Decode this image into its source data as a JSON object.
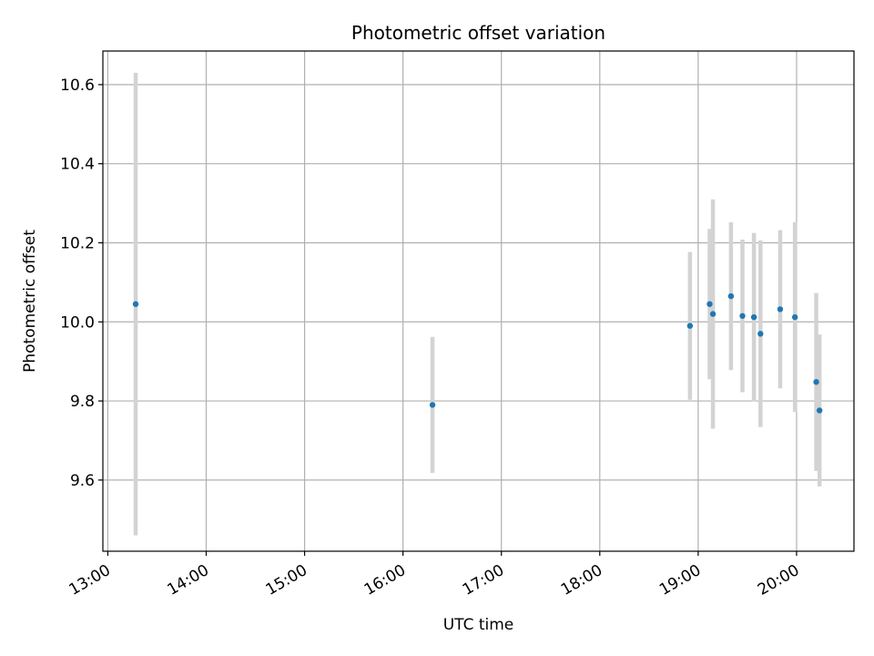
{
  "chart_data": {
    "type": "scatter",
    "title": "Photometric offset variation",
    "xlabel": "UTC time",
    "ylabel": "Photometric offset",
    "x_ticks": [
      "13:00",
      "14:00",
      "15:00",
      "16:00",
      "17:00",
      "18:00",
      "19:00",
      "20:00"
    ],
    "y_ticks": [
      "9.6",
      "9.8",
      "10.0",
      "10.2",
      "10.4",
      "10.6"
    ],
    "xlim": [
      "12:57",
      "20:35"
    ],
    "ylim": [
      9.42,
      10.685
    ],
    "grid": true,
    "point_color": "#1f77b4",
    "errorbar_color": "#d3d3d3",
    "points": [
      {
        "x": "13:17",
        "y": 10.045,
        "yerr": 0.585
      },
      {
        "x": "16:18",
        "y": 9.79,
        "yerr": 0.172
      },
      {
        "x": "18:55",
        "y": 9.99,
        "yerr": 0.187
      },
      {
        "x": "19:07",
        "y": 10.045,
        "yerr": 0.19
      },
      {
        "x": "19:09",
        "y": 10.02,
        "yerr": 0.29
      },
      {
        "x": "19:20",
        "y": 10.065,
        "yerr": 0.187
      },
      {
        "x": "19:27",
        "y": 10.015,
        "yerr": 0.193
      },
      {
        "x": "19:34",
        "y": 10.012,
        "yerr": 0.213
      },
      {
        "x": "19:38",
        "y": 9.97,
        "yerr": 0.236
      },
      {
        "x": "19:50",
        "y": 10.032,
        "yerr": 0.2
      },
      {
        "x": "19:59",
        "y": 10.012,
        "yerr": 0.24
      },
      {
        "x": "20:12",
        "y": 9.848,
        "yerr": 0.225
      },
      {
        "x": "20:14",
        "y": 9.776,
        "yerr": 0.192
      }
    ]
  }
}
